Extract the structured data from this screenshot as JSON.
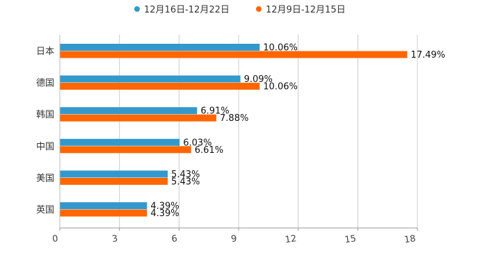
{
  "chart_data": {
    "type": "bar",
    "orientation": "horizontal",
    "title": "",
    "xlabel": "",
    "ylabel": "",
    "xlim": [
      0,
      18
    ],
    "xticks": [
      0,
      3,
      6,
      9,
      12,
      15,
      18
    ],
    "grid": "vertical",
    "legend_position": "top-center",
    "categories": [
      "日本",
      "德国",
      "韩国",
      "中国",
      "美国",
      "英国"
    ],
    "series": [
      {
        "name": "12月16日-12月22日",
        "color": "#3399cc",
        "values": [
          10.06,
          9.09,
          6.91,
          6.03,
          5.43,
          4.39
        ],
        "labels": [
          "10.06%",
          "9.09%",
          "6.91%",
          "6.03%",
          "5.43%",
          "4.39%"
        ]
      },
      {
        "name": "12月9日-12月15日",
        "color": "#ff6600",
        "values": [
          17.49,
          10.06,
          7.88,
          6.61,
          5.43,
          4.39
        ],
        "labels": [
          "17.49%",
          "10.06%",
          "7.88%",
          "6.61%",
          "5.43%",
          "4.39%"
        ]
      }
    ]
  }
}
